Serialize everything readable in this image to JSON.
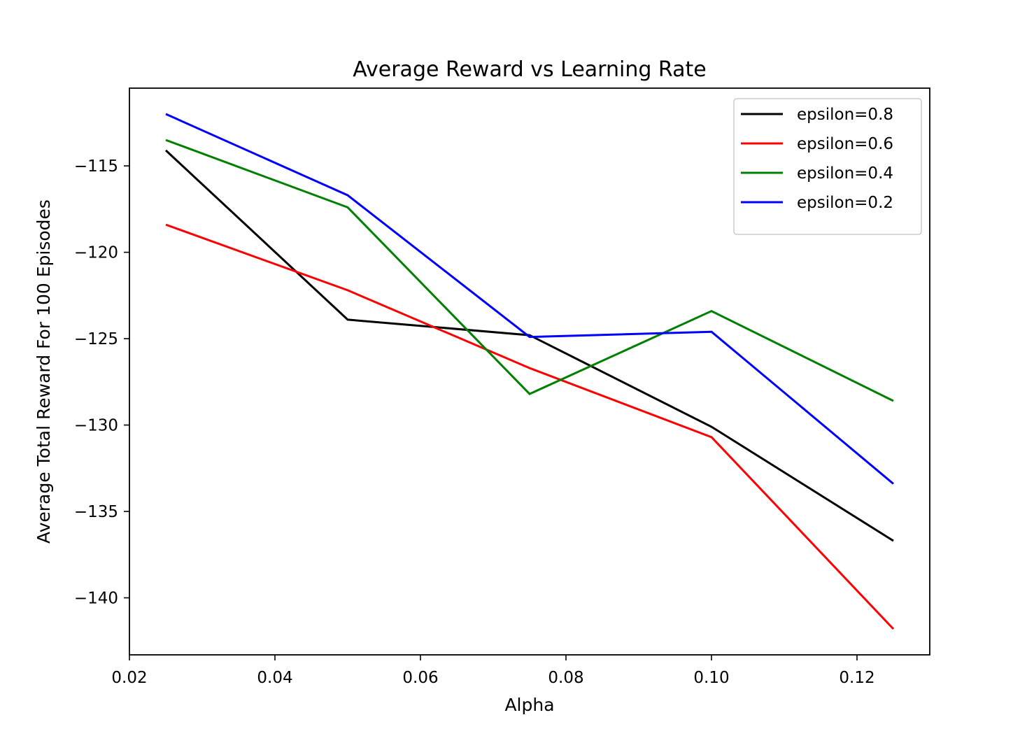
{
  "chart_data": {
    "type": "line",
    "title": "Average Reward vs Learning Rate",
    "xlabel": "Alpha",
    "ylabel": "Average Total Reward For 100 Episodes",
    "x": [
      0.025,
      0.05,
      0.075,
      0.1,
      0.125
    ],
    "xlim": [
      0.02,
      0.13
    ],
    "ylim": [
      -143.3,
      -110.5
    ],
    "xticks": [
      0.02,
      0.04,
      0.06,
      0.08,
      0.1,
      0.12
    ],
    "xtick_labels": [
      "0.02",
      "0.04",
      "0.06",
      "0.08",
      "0.10",
      "0.12"
    ],
    "yticks": [
      -115,
      -120,
      -125,
      -130,
      -135,
      -140
    ],
    "ytick_labels": [
      "−115",
      "−120",
      "−125",
      "−130",
      "−135",
      "−140"
    ],
    "grid": false,
    "legend_position": "top-right",
    "series": [
      {
        "name": "epsilon=0.8",
        "color": "#000000",
        "values": [
          -114.1,
          -123.9,
          -124.8,
          -130.1,
          -136.7
        ]
      },
      {
        "name": "epsilon=0.6",
        "color": "#ff0000",
        "values": [
          -118.4,
          -122.2,
          -126.7,
          -130.7,
          -141.8
        ]
      },
      {
        "name": "epsilon=0.4",
        "color": "#008000",
        "values": [
          -113.5,
          -117.4,
          -128.2,
          -123.4,
          -128.6
        ]
      },
      {
        "name": "epsilon=0.2",
        "color": "#0000ff",
        "values": [
          -112.0,
          -116.7,
          -124.9,
          -124.6,
          -133.4
        ]
      }
    ]
  }
}
